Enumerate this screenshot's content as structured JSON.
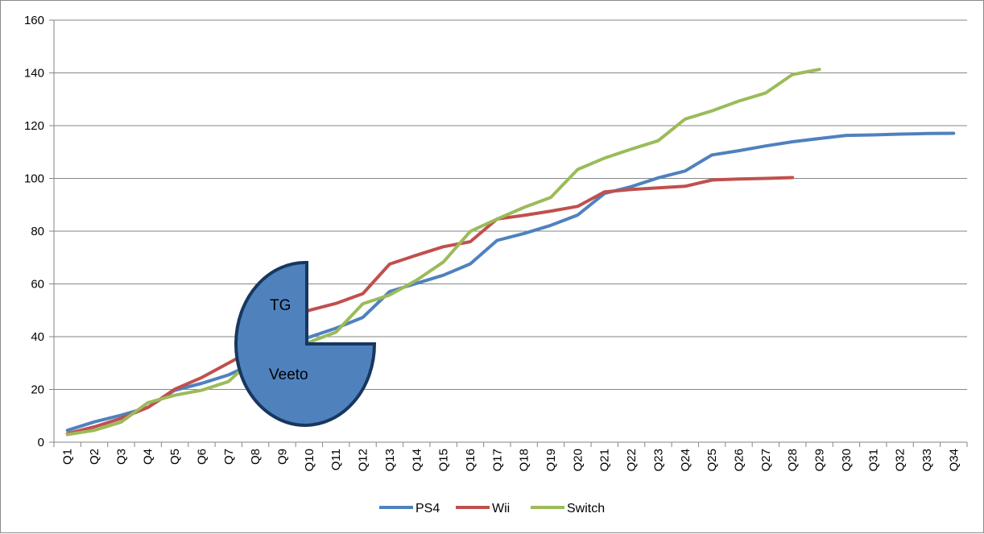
{
  "chart_data": {
    "type": "line",
    "title": "",
    "xlabel": "",
    "ylabel": "",
    "ylim": [
      0,
      160
    ],
    "yticks": [
      0,
      20,
      40,
      60,
      80,
      100,
      120,
      140,
      160
    ],
    "grid": true,
    "legend_position": "bottom",
    "categories": [
      "Q1",
      "Q2",
      "Q3",
      "Q4",
      "Q5",
      "Q6",
      "Q7",
      "Q8",
      "Q9",
      "Q10",
      "Q11",
      "Q12",
      "Q13",
      "Q14",
      "Q15",
      "Q16",
      "Q17",
      "Q18",
      "Q19",
      "Q20",
      "Q21",
      "Q22",
      "Q23",
      "Q24",
      "Q25",
      "Q26",
      "Q27",
      "Q28",
      "Q29",
      "Q30",
      "Q31",
      "Q32",
      "Q33",
      "Q34"
    ],
    "series": [
      {
        "name": "PS4",
        "color": "#4f81bd",
        "values": [
          4.5,
          7.7,
          10.2,
          13.2,
          19.7,
          22.3,
          25.5,
          30.2,
          35.0,
          39.8,
          43.2,
          47.3,
          57.1,
          60.2,
          63.3,
          67.6,
          76.5,
          79.1,
          82.2,
          86.1,
          94.3,
          96.9,
          100.2,
          102.8,
          108.9,
          110.5,
          112.3,
          113.9,
          115.1,
          116.3,
          116.5,
          116.8,
          117.0,
          117.1
        ]
      },
      {
        "name": "Wii",
        "color": "#c0504d",
        "values": [
          3.2,
          5.8,
          9.0,
          13.2,
          20.1,
          24.5,
          30.0,
          35.5,
          44.0,
          50.0,
          52.6,
          56.3,
          67.5,
          70.9,
          74.1,
          76.0,
          84.6,
          86.0,
          87.6,
          89.4,
          94.9,
          95.8,
          96.4,
          97.0,
          99.4,
          99.8,
          100.0,
          100.3,
          null,
          null,
          null,
          null,
          null,
          null
        ]
      },
      {
        "name": "Switch",
        "color": "#9bbb59",
        "values": [
          2.9,
          4.5,
          7.6,
          15.0,
          17.8,
          19.7,
          23.0,
          32.3,
          34.7,
          37.9,
          41.7,
          52.5,
          55.8,
          61.4,
          68.3,
          79.9,
          84.6,
          89.0,
          92.8,
          103.4,
          107.7,
          111.1,
          114.3,
          122.5,
          125.6,
          129.3,
          132.4,
          139.4,
          141.3,
          null,
          null,
          null,
          null,
          null
        ]
      }
    ]
  },
  "overlay": {
    "label_top": "TG",
    "label_bottom": "Veeto",
    "fill_color": "#4f81bd",
    "stroke_color": "#17375e"
  }
}
